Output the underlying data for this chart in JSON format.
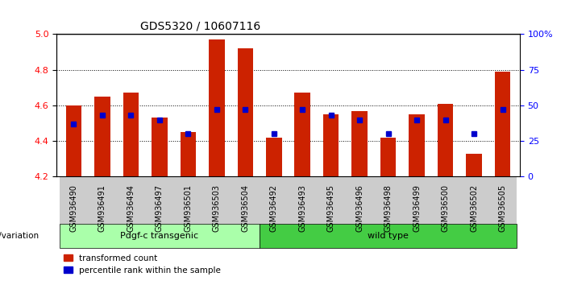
{
  "title": "GDS5320 / 10607116",
  "samples": [
    "GSM936490",
    "GSM936491",
    "GSM936494",
    "GSM936497",
    "GSM936501",
    "GSM936503",
    "GSM936504",
    "GSM936492",
    "GSM936493",
    "GSM936495",
    "GSM936496",
    "GSM936498",
    "GSM936499",
    "GSM936500",
    "GSM936502",
    "GSM936505"
  ],
  "bar_values": [
    4.6,
    4.65,
    4.67,
    4.53,
    4.45,
    4.97,
    4.92,
    4.42,
    4.67,
    4.55,
    4.57,
    4.42,
    4.55,
    4.61,
    4.33,
    4.79
  ],
  "percentile_values": [
    37,
    43,
    43,
    40,
    30,
    47,
    47,
    30,
    47,
    43,
    40,
    30,
    40,
    40,
    30,
    47
  ],
  "ymin": 4.2,
  "ymax": 5.0,
  "bar_color": "#cc2200",
  "dot_color": "#0000cc",
  "transgenic_label": "Pdgf-c transgenic",
  "wildtype_label": "wild type",
  "transgenic_count": 7,
  "wildtype_count": 9,
  "transgenic_color": "#aaffaa",
  "wildtype_color": "#44cc44",
  "group_bg_color": "#dddddd",
  "legend_bar_label": "transformed count",
  "legend_dot_label": "percentile rank within the sample"
}
